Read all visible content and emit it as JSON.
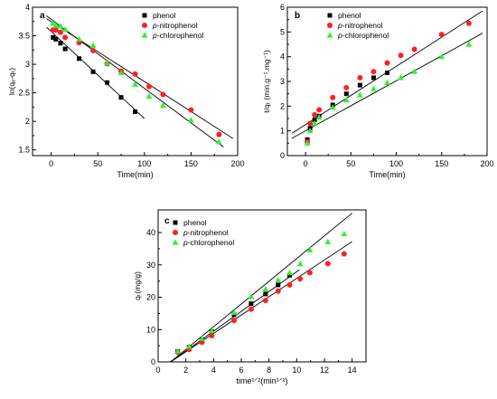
{
  "chart_data": [
    {
      "panel_label": "a",
      "type": "scatter",
      "xlabel": "Time(min)",
      "ylabel": "ln(qₑ-qₜ)",
      "xlim": [
        -20,
        200
      ],
      "ylim": [
        1.4,
        4.0
      ],
      "xticks": [
        0,
        50,
        100,
        150,
        200
      ],
      "yticks": [
        1.5,
        2.0,
        2.5,
        3.0,
        3.5,
        4.0
      ],
      "legend_position": "top-right",
      "series": [
        {
          "name": "phenol",
          "marker": "square",
          "color": "#000000",
          "x": [
            2,
            5,
            10,
            15,
            30,
            45,
            60,
            75,
            90
          ],
          "y": [
            3.47,
            3.44,
            3.37,
            3.27,
            3.1,
            2.87,
            2.68,
            2.42,
            2.17
          ],
          "fit": {
            "x": [
              -5,
              100
            ],
            "y": [
              3.65,
              2.05
            ]
          }
        },
        {
          "name": "p-nitrophenol",
          "marker": "circle",
          "color": "#ff2020",
          "x": [
            2,
            5,
            10,
            15,
            30,
            45,
            60,
            75,
            90,
            105,
            120,
            150,
            180
          ],
          "y": [
            3.6,
            3.6,
            3.56,
            3.47,
            3.38,
            3.24,
            3.01,
            2.88,
            2.83,
            2.61,
            2.47,
            2.2,
            1.77
          ],
          "fit": {
            "x": [
              -5,
              195
            ],
            "y": [
              3.8,
              1.7
            ]
          }
        },
        {
          "name": "p-chlorophenol",
          "marker": "triangle",
          "color": "#33ee33",
          "x": [
            2,
            5,
            10,
            15,
            30,
            45,
            60,
            75,
            90,
            105,
            120,
            150,
            180
          ],
          "y": [
            3.72,
            3.68,
            3.67,
            3.61,
            3.44,
            3.33,
            3.02,
            2.85,
            2.65,
            2.44,
            2.28,
            2.02,
            1.64
          ],
          "fit": {
            "x": [
              -5,
              185
            ],
            "y": [
              3.85,
              1.55
            ]
          }
        }
      ]
    },
    {
      "panel_label": "b",
      "type": "scatter",
      "xlabel": "Time(min)",
      "ylabel": "t/qₜ (min.g⁻¹.mg⁻¹)",
      "xlim": [
        -20,
        200
      ],
      "ylim": [
        0,
        6
      ],
      "xticks": [
        0,
        50,
        100,
        150,
        200
      ],
      "yticks": [
        0,
        1,
        2,
        3,
        4,
        5,
        6
      ],
      "legend_position": "top-left",
      "series": [
        {
          "name": "phenol",
          "marker": "square",
          "color": "#000000",
          "x": [
            2,
            5,
            10,
            15,
            30,
            45,
            60,
            75,
            90
          ],
          "y": [
            0.65,
            1.1,
            1.45,
            1.6,
            2.05,
            2.5,
            2.85,
            3.15,
            3.35
          ]
        },
        {
          "name": "p-nitrophenol",
          "marker": "circle",
          "color": "#ff2020",
          "x": [
            2,
            5,
            10,
            15,
            30,
            45,
            60,
            75,
            90,
            105,
            120,
            150,
            180
          ],
          "y": [
            0.55,
            1.3,
            1.65,
            1.85,
            2.35,
            2.75,
            3.15,
            3.4,
            3.75,
            4.05,
            4.3,
            4.9,
            5.35
          ]
        },
        {
          "name": "p-chlorophenol",
          "marker": "triangle",
          "color": "#33ee33",
          "x": [
            2,
            5,
            10,
            15,
            30,
            45,
            60,
            75,
            90,
            105,
            120,
            150,
            180
          ],
          "y": [
            0.5,
            1.0,
            1.3,
            1.55,
            1.95,
            2.25,
            2.45,
            2.7,
            2.95,
            3.15,
            3.4,
            4.0,
            4.5
          ]
        }
      ],
      "fit_lines": [
        {
          "x": [
            -15,
            195
          ],
          "y": [
            0.9,
            5.85
          ]
        },
        {
          "x": [
            -15,
            195
          ],
          "y": [
            0.7,
            4.95
          ]
        }
      ]
    },
    {
      "panel_label": "c",
      "type": "scatter",
      "xlabel": "time¹ᐟ²(min¹ᐟ²)",
      "ylabel": "qₜ(mg/g)",
      "xlim": [
        0,
        15
      ],
      "ylim": [
        0,
        47
      ],
      "xticks": [
        0,
        2,
        4,
        6,
        8,
        10,
        12,
        14
      ],
      "yticks": [
        0,
        10,
        20,
        30,
        40
      ],
      "legend_position": "top-left",
      "series": [
        {
          "name": "phenol",
          "marker": "square",
          "color": "#000000",
          "x": [
            1.41,
            2.24,
            3.16,
            3.87,
            5.48,
            6.71,
            7.75,
            8.66,
            9.49
          ],
          "y": [
            3.2,
            4.5,
            6.9,
            9.4,
            14.6,
            18.0,
            21.0,
            23.8,
            26.8
          ]
        },
        {
          "name": "p-nitrophenol",
          "marker": "circle",
          "color": "#ff2020",
          "x": [
            1.41,
            2.24,
            3.16,
            3.87,
            5.48,
            6.71,
            7.75,
            8.66,
            9.49,
            10.25,
            10.95,
            12.25,
            13.42
          ],
          "y": [
            3.0,
            3.8,
            6.1,
            8.1,
            12.8,
            16.3,
            19.0,
            21.9,
            23.8,
            25.7,
            27.6,
            30.4,
            33.4
          ]
        },
        {
          "name": "p-chlorophenol",
          "marker": "triangle",
          "color": "#33ee33",
          "x": [
            1.41,
            2.24,
            3.16,
            3.87,
            5.48,
            6.71,
            7.75,
            8.66,
            9.49,
            10.25,
            10.95,
            12.25,
            13.42
          ],
          "y": [
            3.3,
            4.8,
            7.2,
            9.6,
            15.2,
            20.2,
            22.5,
            25.3,
            27.5,
            30.3,
            34.6,
            37.1,
            39.6
          ]
        }
      ],
      "fit_lines": [
        {
          "x": [
            0.9,
            10.2
          ],
          "y": [
            0,
            28.5
          ]
        },
        {
          "x": [
            0.9,
            14.0
          ],
          "y": [
            0,
            46.0
          ]
        },
        {
          "x": [
            0.9,
            14.0
          ],
          "y": [
            0,
            37.2
          ]
        }
      ]
    }
  ]
}
